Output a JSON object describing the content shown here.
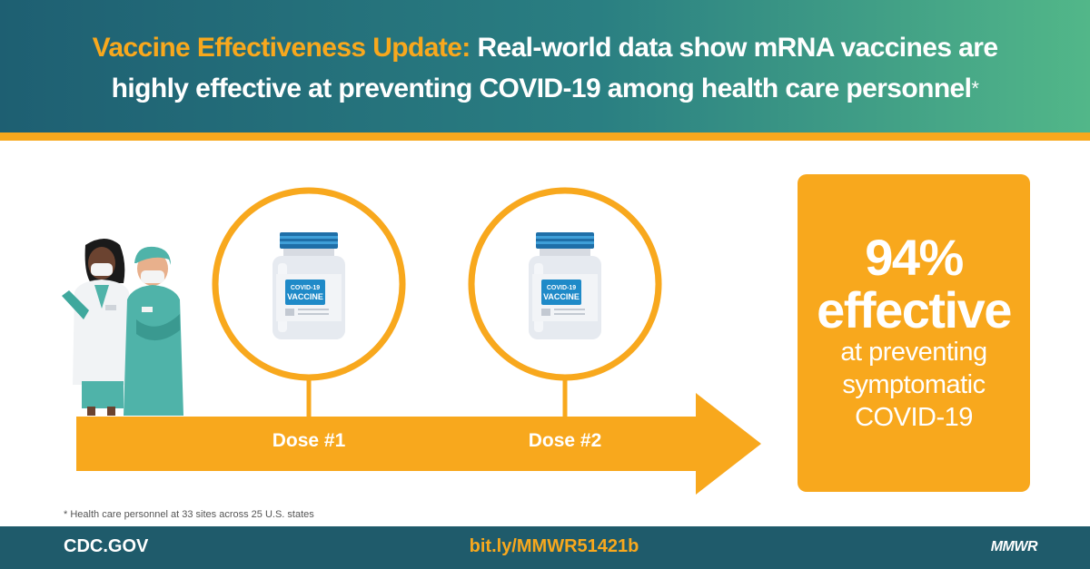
{
  "header": {
    "title_highlight": "Vaccine Effectiveness Update:",
    "title_rest": "Real-world data show mRNA vaccines are highly effective at preventing COVID-19 among health care personnel",
    "title_mark": "*",
    "highlight_color": "#f8a81d"
  },
  "doses": [
    {
      "label": "Dose #1",
      "vial_text_top": "COVID-19",
      "vial_text_bottom": "VACCINE"
    },
    {
      "label": "Dose #2",
      "vial_text_top": "COVID-19",
      "vial_text_bottom": "VACCINE"
    }
  ],
  "result": {
    "percent": "94%",
    "word": "effective",
    "line1": "at preventing",
    "line2": "symptomatic",
    "line3": "COVID-19"
  },
  "footnote": "* Health care personnel at 33 sites across 25 U.S. states",
  "footer": {
    "left": "CDC.GOV",
    "middle": "bit.ly/MMWR51421b",
    "right": "MMWR"
  },
  "colors": {
    "orange": "#f8a81d",
    "teal_dark": "#1f5b6b",
    "teal_light": "#52b789",
    "vial_blue": "#1f8ac8"
  }
}
